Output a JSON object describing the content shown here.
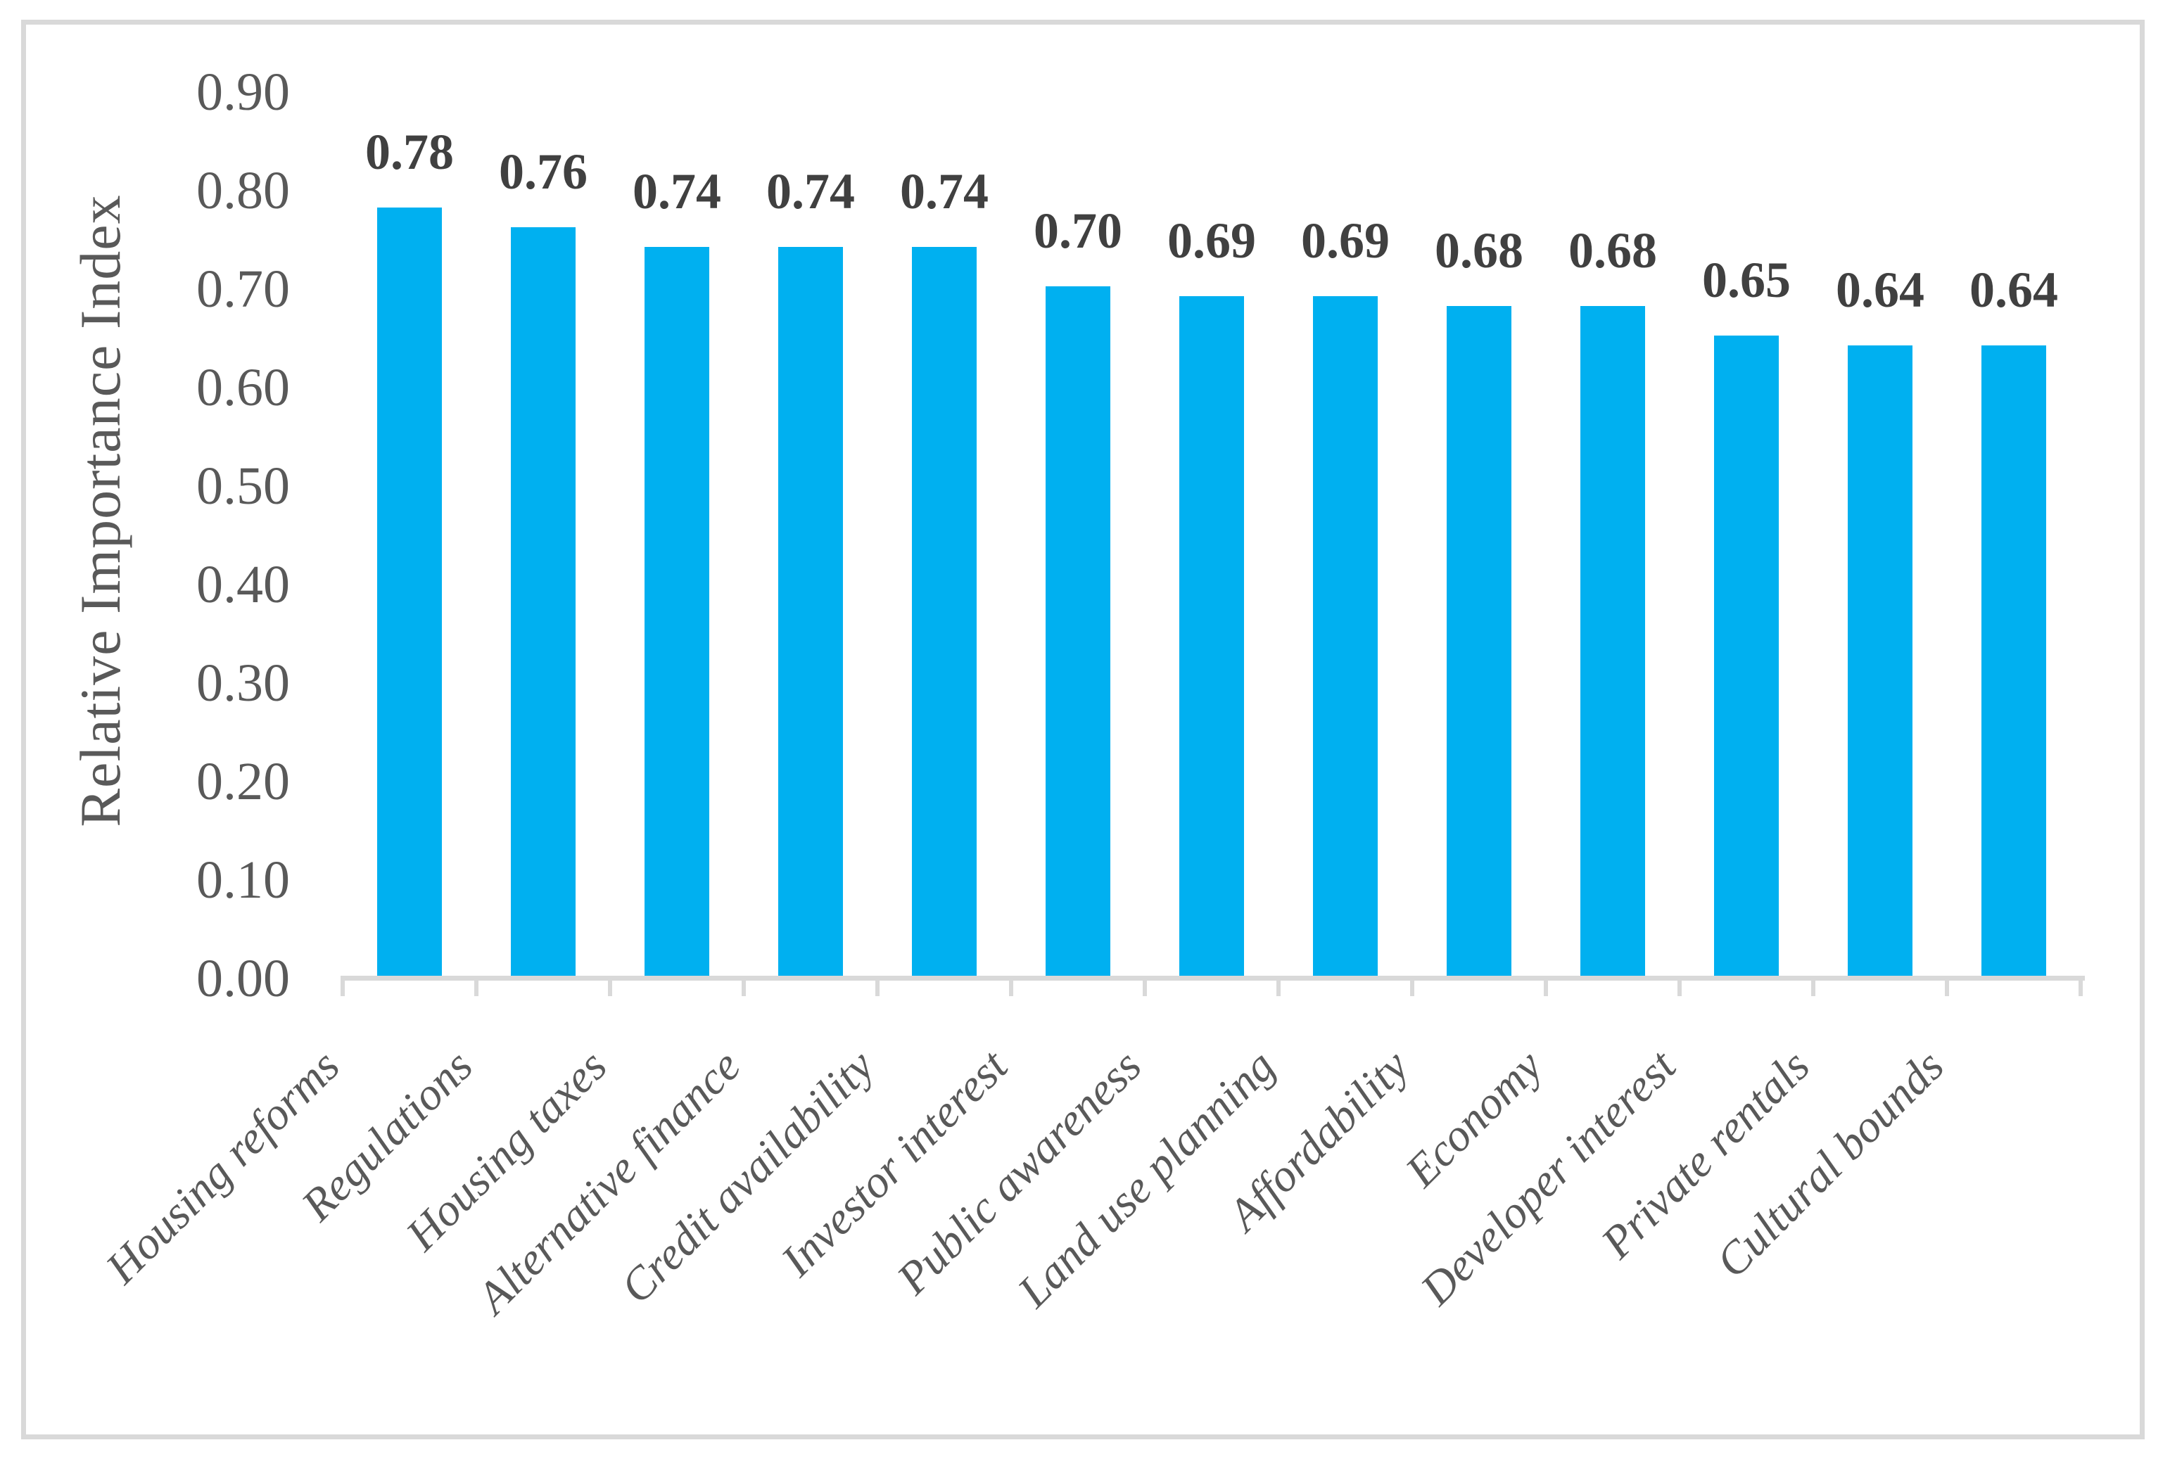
{
  "chart_data": {
    "type": "bar",
    "title": "",
    "xlabel": "",
    "ylabel": "Relative Importance Index",
    "categories": [
      "Housing reforms",
      "Regulations",
      "Housing taxes",
      "Alternative finance",
      "Credit availability",
      "Investor interest",
      "Public awareness",
      "Land use planning",
      "Affordability",
      "Economy",
      "Developer interest",
      "Private rentals",
      "Cultural bounds"
    ],
    "values": [
      0.78,
      0.76,
      0.74,
      0.74,
      0.74,
      0.7,
      0.69,
      0.69,
      0.68,
      0.68,
      0.65,
      0.64,
      0.64
    ],
    "value_labels": [
      "0.78",
      "0.76",
      "0.74",
      "0.74",
      "0.74",
      "0.70",
      "0.69",
      "0.69",
      "0.68",
      "0.68",
      "0.65",
      "0.64",
      "0.64"
    ],
    "y_ticks": [
      "0.00",
      "0.10",
      "0.20",
      "0.30",
      "0.40",
      "0.50",
      "0.60",
      "0.70",
      "0.80",
      "0.90"
    ],
    "ylim": [
      0.0,
      0.9
    ],
    "grid": false,
    "legend_position": "none",
    "bar_color": "#00B0F0",
    "axis_color": "#D9D9D9",
    "value_label_color": "#404040",
    "tick_label_color": "#595959",
    "category_label_rotation_deg": 45
  }
}
